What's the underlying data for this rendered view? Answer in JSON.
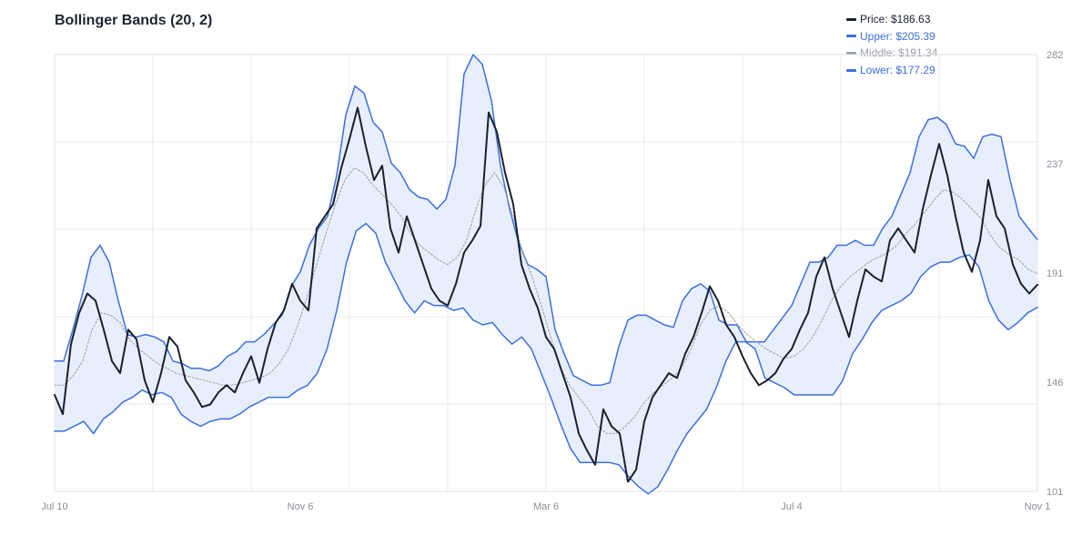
{
  "chart_data": {
    "type": "line",
    "title": "Bollinger Bands (20, 2)",
    "x_tick_labels": [
      "Jul 10",
      "Nov 6",
      "Mar 6",
      "Jul 4",
      "Nov 1"
    ],
    "y_tick_labels": [
      "101",
      "146",
      "191",
      "237",
      "282"
    ],
    "ylim": [
      101,
      282
    ],
    "grid": true,
    "legend_position": "top-right",
    "legend": [
      {
        "key": "price",
        "label": "Price: $186.63"
      },
      {
        "key": "upper",
        "label": "Upper: $205.39"
      },
      {
        "key": "middle",
        "label": "Middle: $191.34"
      },
      {
        "key": "lower",
        "label": "Lower: $177.29"
      }
    ],
    "colors": {
      "price": "#1a1f2e",
      "upper": "#3b6fe0",
      "middle": "#9a9ea6",
      "lower": "#3b6fe0",
      "band_fill": "#e6edfc"
    },
    "series": [
      {
        "name": "Price",
        "values": [
          141,
          133,
          162,
          175,
          183,
          180,
          168,
          155,
          150,
          168,
          164,
          147,
          138,
          150,
          165,
          161,
          147,
          142,
          136,
          137,
          142,
          145,
          142,
          150,
          157,
          146,
          160,
          171,
          176,
          187,
          180,
          176,
          210,
          215,
          220,
          235,
          247,
          260,
          244,
          230,
          236,
          210,
          200,
          215,
          205,
          195,
          185,
          180,
          178,
          187,
          200,
          205,
          211,
          258,
          250,
          233,
          220,
          195,
          185,
          177,
          165,
          160,
          150,
          140,
          125,
          118,
          112,
          135,
          128,
          125,
          105,
          110,
          130,
          140,
          145,
          150,
          148,
          158,
          165,
          175,
          186,
          180,
          170,
          165,
          157,
          150,
          145,
          147,
          150,
          156,
          160,
          168,
          175,
          190,
          198,
          185,
          175,
          165,
          180,
          193,
          190,
          188,
          205,
          210,
          205,
          200,
          218,
          232,
          245,
          232,
          215,
          200,
          192,
          205,
          230,
          215,
          210,
          195,
          187,
          183,
          186.63
        ]
      },
      {
        "name": "Upper",
        "values": [
          155,
          155,
          168,
          182,
          198,
          203,
          196,
          180,
          166,
          165,
          166,
          165,
          163,
          155,
          154,
          152,
          152,
          151,
          153,
          157,
          159,
          163,
          163,
          166,
          170,
          174,
          186,
          192,
          203,
          210,
          215,
          232,
          257,
          269,
          266,
          254,
          250,
          237,
          233,
          226,
          223,
          222,
          218,
          222,
          236,
          274,
          282,
          278,
          263,
          236,
          218,
          204,
          195,
          193,
          190,
          168,
          158,
          149,
          147,
          145,
          145,
          146,
          161,
          172,
          174,
          174,
          172,
          170,
          169,
          180,
          185,
          187,
          184,
          172,
          170,
          170,
          163,
          163,
          163,
          168,
          173,
          178,
          187,
          196,
          196,
          198,
          203,
          203,
          205,
          203,
          203,
          210,
          215,
          224,
          233,
          248,
          255,
          256,
          253,
          245,
          244,
          239,
          248,
          249,
          248,
          230,
          215,
          210,
          205.39
        ]
      },
      {
        "name": "Middle",
        "values": [
          145,
          145,
          149,
          155,
          168,
          175,
          174,
          171,
          164,
          160,
          157,
          154,
          152,
          150,
          149,
          148,
          147,
          146,
          145,
          145,
          146,
          147,
          148,
          150,
          154,
          160,
          170,
          182,
          195,
          208,
          220,
          230,
          235,
          233,
          228,
          224,
          220,
          215,
          208,
          203,
          200,
          197,
          195,
          198,
          205,
          218,
          228,
          233,
          227,
          215,
          200,
          190,
          178,
          165,
          153,
          145,
          140,
          135,
          128,
          125,
          125,
          128,
          132,
          138,
          142,
          145,
          148,
          152,
          160,
          170,
          176,
          178,
          175,
          170,
          166,
          163,
          160,
          158,
          156,
          157,
          160,
          165,
          172,
          180,
          186,
          190,
          193,
          196,
          198,
          200,
          203,
          208,
          212,
          217,
          222,
          226,
          225,
          222,
          218,
          214,
          207,
          202,
          199,
          197,
          193,
          191.34
        ]
      },
      {
        "name": "Lower",
        "values": [
          126,
          126,
          128,
          130,
          125,
          131,
          134,
          138,
          140,
          143,
          141,
          142,
          140,
          133,
          130,
          128,
          130,
          131,
          131,
          133,
          136,
          138,
          140,
          140,
          140,
          143,
          145,
          150,
          160,
          176,
          196,
          209,
          212,
          208,
          196,
          188,
          180,
          175,
          180,
          178,
          178,
          176,
          177,
          172,
          170,
          171,
          166,
          162,
          165,
          160,
          150,
          140,
          129,
          119,
          113,
          113,
          113,
          113,
          112,
          107,
          103,
          100,
          103,
          110,
          118,
          125,
          130,
          135,
          144,
          155,
          163,
          163,
          160,
          148,
          146,
          144,
          141,
          141,
          141,
          141,
          141,
          147,
          158,
          164,
          171,
          176,
          178,
          180,
          183,
          190,
          194,
          196,
          196,
          198,
          199,
          194,
          180,
          172,
          168,
          171,
          175,
          177.29
        ]
      }
    ]
  }
}
